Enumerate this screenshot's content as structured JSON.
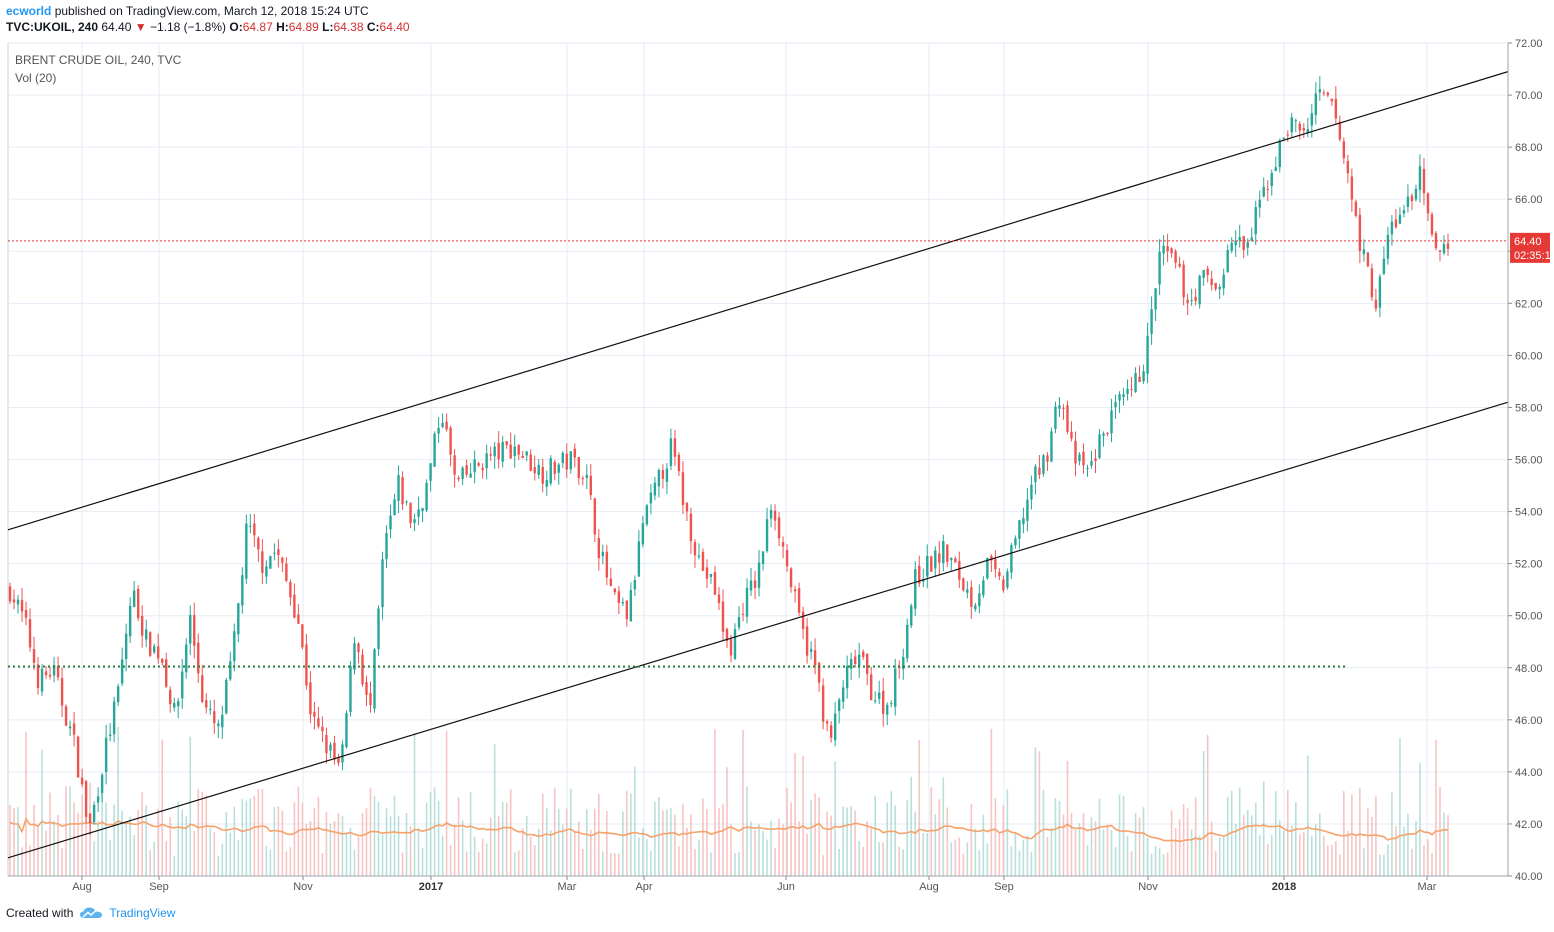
{
  "header": {
    "author": "ecworld",
    "published": "published on TradingView.com, March 12, 2018 15:24 UTC",
    "symbol": "TVC:UKOIL, 240",
    "last": "64.40",
    "change_arrow": "▼",
    "change": "−1.18 (−1.8%)",
    "o_label": "O:",
    "o_value": "64.87",
    "h_label": "H:",
    "h_value": "64.89",
    "l_label": "L:",
    "l_value": "64.38",
    "c_label": "C:",
    "c_value": "64.40"
  },
  "chart_data": {
    "type": "candlestick",
    "title": "BRENT CRUDE OIL, 240, TVC",
    "indicator": "Vol (20)",
    "y_axis": {
      "min": 40,
      "max": 72,
      "ticks": [
        "40.00",
        "42.00",
        "44.00",
        "46.00",
        "48.00",
        "50.00",
        "52.00",
        "54.00",
        "56.00",
        "58.00",
        "60.00",
        "62.00",
        "64.00",
        "66.00",
        "68.00",
        "70.00",
        "72.00"
      ],
      "side": "right"
    },
    "x_axis": {
      "ticks": [
        "Aug",
        "Sep",
        "Nov",
        "2017",
        "Mar",
        "Apr",
        "Jun",
        "Aug",
        "Sep",
        "Nov",
        "2018",
        "Mar"
      ]
    },
    "last_price": "64.40",
    "countdown": "02:35:1",
    "channel_upper": {
      "start": 53.3,
      "end": 70.9
    },
    "channel_lower": {
      "start": 40.7,
      "end": 58.2
    },
    "support_level": 48.05,
    "price_path": [
      [
        0.0,
        51.0
      ],
      [
        0.01,
        49.8
      ],
      [
        0.02,
        47.5
      ],
      [
        0.03,
        47.9
      ],
      [
        0.045,
        45.0
      ],
      [
        0.055,
        41.7
      ],
      [
        0.065,
        44.5
      ],
      [
        0.075,
        47.0
      ],
      [
        0.085,
        51.0
      ],
      [
        0.095,
        49.0
      ],
      [
        0.105,
        48.5
      ],
      [
        0.115,
        46.0
      ],
      [
        0.125,
        50.0
      ],
      [
        0.135,
        46.5
      ],
      [
        0.145,
        45.5
      ],
      [
        0.155,
        48.5
      ],
      [
        0.165,
        53.5
      ],
      [
        0.175,
        52.0
      ],
      [
        0.185,
        52.5
      ],
      [
        0.2,
        50.0
      ],
      [
        0.21,
        46.0
      ],
      [
        0.22,
        45.0
      ],
      [
        0.23,
        44.0
      ],
      [
        0.24,
        49.5
      ],
      [
        0.25,
        46.0
      ],
      [
        0.26,
        52.5
      ],
      [
        0.27,
        55.0
      ],
      [
        0.28,
        53.5
      ],
      [
        0.29,
        55.0
      ],
      [
        0.3,
        58.0
      ],
      [
        0.31,
        55.0
      ],
      [
        0.33,
        56.0
      ],
      [
        0.35,
        56.5
      ],
      [
        0.37,
        55.5
      ],
      [
        0.39,
        56.0
      ],
      [
        0.4,
        55.5
      ],
      [
        0.41,
        52.5
      ],
      [
        0.42,
        50.5
      ],
      [
        0.43,
        50.0
      ],
      [
        0.44,
        53.5
      ],
      [
        0.45,
        55.0
      ],
      [
        0.46,
        56.5
      ],
      [
        0.47,
        54.0
      ],
      [
        0.48,
        52.0
      ],
      [
        0.49,
        51.0
      ],
      [
        0.5,
        48.5
      ],
      [
        0.51,
        50.5
      ],
      [
        0.52,
        51.5
      ],
      [
        0.53,
        54.5
      ],
      [
        0.54,
        52.0
      ],
      [
        0.55,
        49.5
      ],
      [
        0.56,
        48.0
      ],
      [
        0.57,
        45.0
      ],
      [
        0.58,
        47.5
      ],
      [
        0.59,
        48.5
      ],
      [
        0.6,
        47.0
      ],
      [
        0.61,
        46.5
      ],
      [
        0.62,
        48.5
      ],
      [
        0.63,
        51.5
      ],
      [
        0.64,
        52.0
      ],
      [
        0.65,
        52.5
      ],
      [
        0.66,
        51.5
      ],
      [
        0.67,
        50.5
      ],
      [
        0.68,
        52.0
      ],
      [
        0.69,
        51.0
      ],
      [
        0.7,
        53.0
      ],
      [
        0.71,
        55.0
      ],
      [
        0.72,
        56.0
      ],
      [
        0.73,
        58.5
      ],
      [
        0.74,
        56.0
      ],
      [
        0.75,
        55.5
      ],
      [
        0.76,
        57.0
      ],
      [
        0.77,
        58.0
      ],
      [
        0.78,
        58.5
      ],
      [
        0.79,
        60.0
      ],
      [
        0.8,
        64.0
      ],
      [
        0.81,
        63.5
      ],
      [
        0.82,
        62.0
      ],
      [
        0.83,
        63.0
      ],
      [
        0.84,
        62.5
      ],
      [
        0.85,
        64.5
      ],
      [
        0.86,
        64.0
      ],
      [
        0.87,
        66.0
      ],
      [
        0.88,
        67.5
      ],
      [
        0.89,
        69.0
      ],
      [
        0.9,
        68.5
      ],
      [
        0.91,
        70.0
      ],
      [
        0.92,
        69.5
      ],
      [
        0.93,
        67.0
      ],
      [
        0.94,
        64.0
      ],
      [
        0.95,
        62.0
      ],
      [
        0.96,
        65.0
      ],
      [
        0.97,
        65.5
      ],
      [
        0.98,
        67.0
      ],
      [
        0.99,
        64.0
      ],
      [
        1.0,
        64.4
      ]
    ]
  },
  "footer": {
    "created_with": "Created with",
    "brand": "TradingView"
  },
  "colors": {
    "up": "#26a69a",
    "down": "#ef5350",
    "grid": "#e6edf5",
    "volume_ma": "#f5a26b",
    "support": "#2e7d32",
    "last_price": "#e53935"
  }
}
